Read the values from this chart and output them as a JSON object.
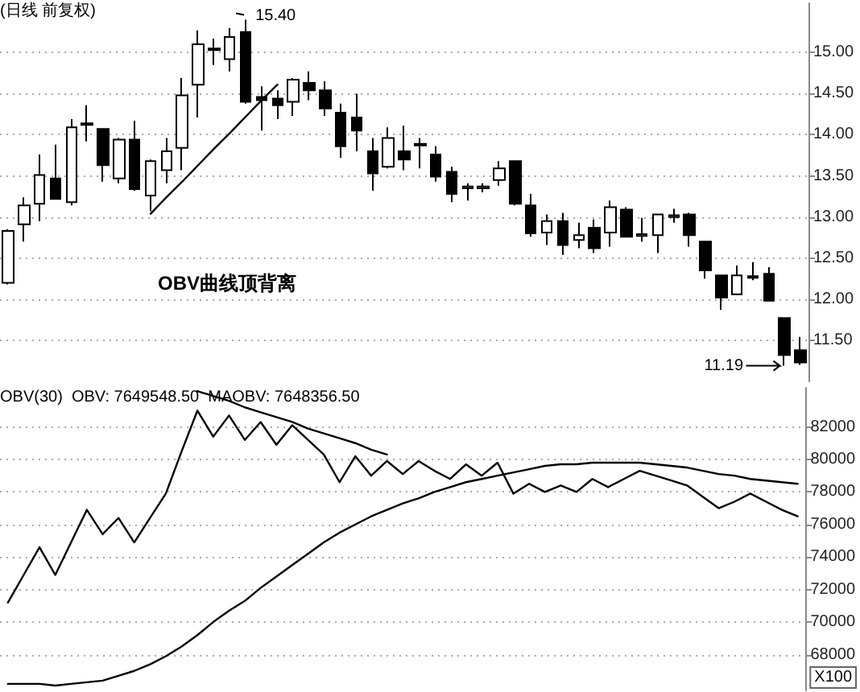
{
  "chart_data": [
    {
      "type": "candlestick",
      "title": "(日线 前复权)",
      "categories": [
        null,
        null,
        null,
        null,
        null,
        null,
        null,
        null,
        null,
        null,
        null,
        null,
        null,
        null,
        null,
        null,
        null,
        null,
        null,
        null,
        null,
        null,
        null,
        null,
        null,
        null,
        null,
        null,
        null,
        null,
        null,
        null,
        null,
        null,
        null,
        null,
        null,
        null,
        null,
        null,
        null,
        null,
        null,
        null,
        null,
        null,
        null,
        null,
        null,
        null,
        null
      ],
      "ohlc": [
        [
          12.2,
          12.85,
          12.18,
          12.83
        ],
        [
          12.91,
          13.24,
          12.7,
          13.14
        ],
        [
          13.16,
          13.76,
          12.95,
          13.51
        ],
        [
          13.47,
          13.88,
          13.22,
          13.22
        ],
        [
          13.18,
          14.19,
          13.14,
          14.09
        ],
        [
          14.12,
          14.36,
          13.92,
          14.14
        ],
        [
          14.07,
          14.08,
          13.43,
          13.63
        ],
        [
          13.47,
          13.96,
          13.41,
          13.94
        ],
        [
          13.94,
          14.17,
          13.32,
          13.34
        ],
        [
          13.26,
          13.7,
          13.07,
          13.68
        ],
        [
          13.57,
          13.96,
          13.41,
          13.8
        ],
        [
          13.84,
          14.69,
          13.57,
          14.48
        ],
        [
          14.61,
          15.27,
          14.21,
          15.1
        ],
        [
          15.03,
          15.17,
          14.85,
          15.05
        ],
        [
          14.92,
          15.3,
          14.77,
          15.19
        ],
        [
          15.25,
          15.4,
          14.38,
          14.4
        ],
        [
          14.46,
          14.59,
          14.05,
          14.42
        ],
        [
          14.44,
          14.54,
          14.19,
          14.36
        ],
        [
          14.4,
          14.69,
          14.23,
          14.67
        ],
        [
          14.63,
          14.77,
          14.42,
          14.54
        ],
        [
          14.54,
          14.65,
          14.23,
          14.32
        ],
        [
          14.27,
          14.38,
          13.72,
          13.86
        ],
        [
          14.21,
          14.5,
          13.8,
          14.05
        ],
        [
          13.8,
          13.96,
          13.32,
          13.53
        ],
        [
          13.61,
          14.09,
          13.59,
          13.96
        ],
        [
          13.8,
          14.11,
          13.57,
          13.7
        ],
        [
          13.87,
          13.96,
          13.59,
          13.89
        ],
        [
          13.76,
          13.86,
          13.43,
          13.49
        ],
        [
          13.55,
          13.61,
          13.18,
          13.28
        ],
        [
          13.35,
          13.41,
          13.2,
          13.37
        ],
        [
          13.35,
          13.41,
          13.3,
          13.37
        ],
        [
          13.45,
          13.68,
          13.38,
          13.59
        ],
        [
          13.68,
          13.69,
          13.14,
          13.16
        ],
        [
          13.14,
          13.28,
          12.76,
          12.8
        ],
        [
          12.81,
          13.03,
          12.66,
          12.95
        ],
        [
          12.95,
          13.05,
          12.54,
          12.66
        ],
        [
          12.72,
          12.93,
          12.62,
          12.78
        ],
        [
          12.87,
          12.97,
          12.56,
          12.62
        ],
        [
          12.81,
          13.2,
          12.64,
          13.12
        ],
        [
          13.09,
          13.12,
          12.76,
          12.76
        ],
        [
          12.77,
          12.99,
          12.7,
          12.79
        ],
        [
          12.78,
          13.03,
          12.56,
          13.03
        ],
        [
          13.0,
          13.1,
          12.93,
          13.02
        ],
        [
          13.03,
          13.05,
          12.64,
          12.78
        ],
        [
          12.7,
          12.7,
          12.25,
          12.35
        ],
        [
          12.29,
          12.3,
          11.87,
          12.02
        ],
        [
          12.06,
          12.41,
          12.06,
          12.29
        ],
        [
          12.26,
          12.45,
          12.23,
          12.28
        ],
        [
          12.31,
          12.39,
          11.98,
          11.98
        ],
        [
          11.77,
          11.77,
          11.19,
          11.32
        ],
        [
          11.38,
          11.54,
          11.2,
          11.23
        ]
      ],
      "color": "#000000",
      "series": [
        {
          "type": "line",
          "values": [
            null,
            null,
            null,
            null,
            null,
            null,
            null,
            null,
            null,
            13.04,
            13.24,
            13.43,
            13.63,
            13.83,
            14.02,
            14.22,
            14.42,
            14.61,
            null,
            null,
            null,
            null,
            null,
            null,
            null,
            null,
            null,
            null,
            null,
            null,
            null,
            null,
            null,
            null,
            null,
            null,
            null,
            null,
            null,
            null,
            null,
            null,
            null,
            null,
            null,
            null,
            null,
            null,
            null,
            null,
            null
          ],
          "color": "#000000"
        }
      ],
      "ylim": [
        11.0,
        15.6
      ],
      "yticks": [
        {
          "value": 11.5,
          "label": "11.50"
        },
        {
          "value": 12,
          "label": "12.00"
        },
        {
          "value": 12.5,
          "label": "12.50"
        },
        {
          "value": 13,
          "label": "13.00"
        },
        {
          "value": 13.5,
          "label": "13.50"
        },
        {
          "value": 14,
          "label": "14.00"
        },
        {
          "value": 14.5,
          "label": "14.50"
        },
        {
          "value": 15,
          "label": "15.00"
        }
      ],
      "grid": "y",
      "tick_labels": "y",
      "annotations": [
        "OBV曲线顶背离",
        "15.40",
        "11.19"
      ]
    },
    {
      "type": "line",
      "title": "OBV(30)  OBV: 7649548.50  MAOBV: 7648356.50",
      "categories": [
        null,
        null,
        null,
        null,
        null,
        null,
        null,
        null,
        null,
        null,
        null,
        null,
        null,
        null,
        null,
        null,
        null,
        null,
        null,
        null,
        null,
        null,
        null,
        null,
        null,
        null,
        null,
        null,
        null,
        null,
        null,
        null,
        null,
        null,
        null,
        null,
        null,
        null,
        null,
        null,
        null,
        null,
        null,
        null,
        null,
        null,
        null,
        null,
        null,
        null,
        null
      ],
      "series": [
        {
          "color": "#000000",
          "values": [
            71200,
            72900,
            74600,
            72900,
            74900,
            76900,
            75400,
            76400,
            74900,
            76400,
            77900,
            80500,
            83000,
            81400,
            82700,
            81200,
            82300,
            80900,
            82100,
            81200,
            80300,
            78600,
            80200,
            79000,
            79900,
            79100,
            79900,
            79300,
            78800,
            79700,
            79000,
            79800,
            77900,
            78500,
            78000,
            78400,
            78000,
            78800,
            78300,
            78800,
            79300,
            79000,
            78700,
            78400,
            77700,
            77000,
            77400,
            77900,
            77400,
            76900,
            76500
          ]
        },
        {
          "color": "#000000",
          "values": [
            66200,
            66200,
            66200,
            66100,
            66200,
            66300,
            66400,
            66700,
            67000,
            67400,
            67900,
            68500,
            69200,
            70000,
            70700,
            71300,
            72100,
            72800,
            73500,
            74200,
            74900,
            75500,
            76000,
            76500,
            76900,
            77300,
            77600,
            78000,
            78300,
            78600,
            78800,
            79000,
            79200,
            79400,
            79600,
            79700,
            79700,
            79800,
            79800,
            79800,
            79800,
            79700,
            79600,
            79500,
            79300,
            79100,
            79000,
            78800,
            78700,
            78600,
            78500
          ]
        },
        {
          "values": [
            null,
            null,
            null,
            null,
            null,
            null,
            null,
            null,
            null,
            null,
            null,
            null,
            84200,
            83900,
            83600,
            83200,
            82900,
            82600,
            82300,
            81900,
            81600,
            81300,
            81000,
            80600,
            80300,
            null,
            null,
            null,
            null,
            null,
            null,
            null,
            null,
            null,
            null,
            null,
            null,
            null,
            null,
            null,
            null,
            null,
            null,
            null,
            null,
            null,
            null,
            null,
            null,
            null,
            null
          ],
          "color": "#000000"
        }
      ],
      "ylim": [
        65800,
        84400
      ],
      "yticks": [
        68000,
        70000,
        72000,
        74000,
        76000,
        78000,
        80000,
        82000
      ],
      "grid": "y",
      "tick_labels": "y",
      "annotations": [
        "X100"
      ]
    }
  ]
}
